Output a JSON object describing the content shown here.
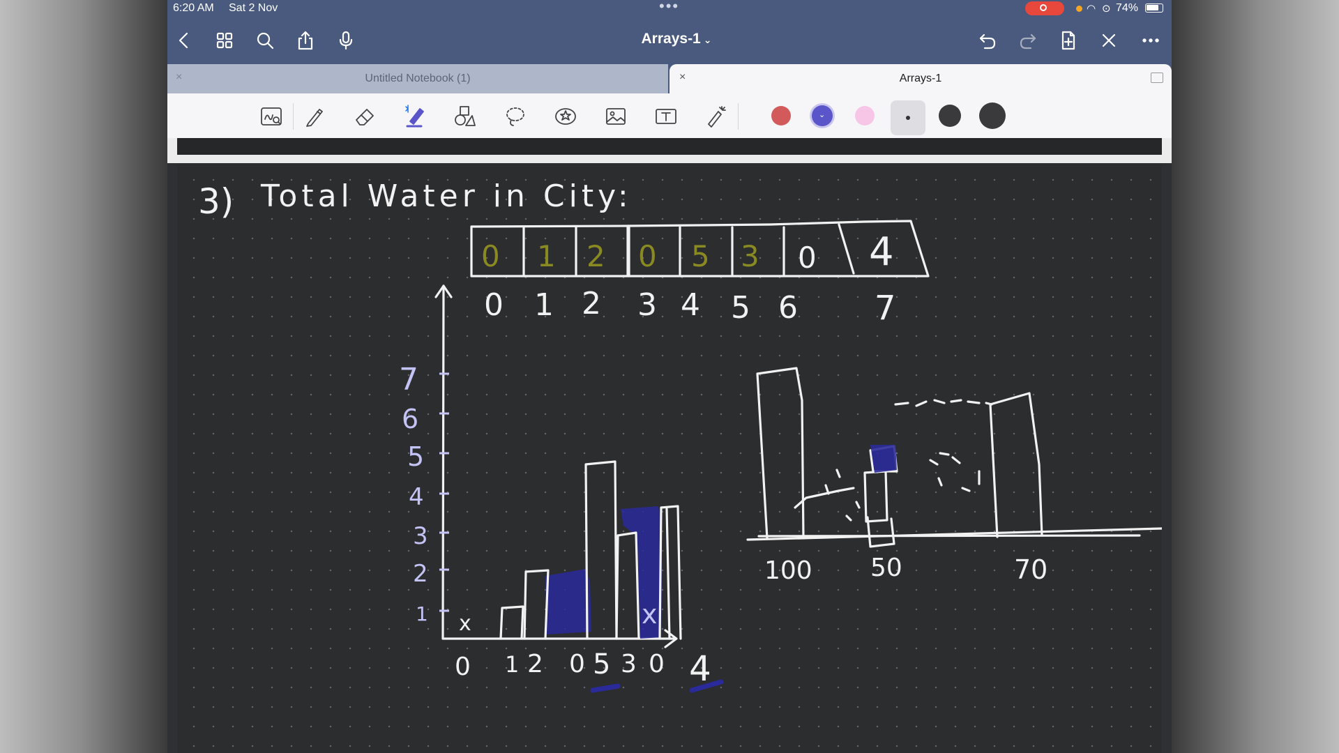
{
  "status_bar": {
    "time": "6:20 AM",
    "date": "Sat 2 Nov",
    "battery": "74%"
  },
  "nav": {
    "title": "Arrays-1"
  },
  "tabs": [
    {
      "label": "Untitled Notebook (1)",
      "active": false
    },
    {
      "label": "Arrays-1",
      "active": true
    }
  ],
  "toolbar": {
    "tools": [
      "zoom-window",
      "pen",
      "eraser",
      "highlighter",
      "shapes",
      "lasso",
      "sticker",
      "image",
      "text",
      "laser-pointer"
    ],
    "colors": [
      "#d35a5a",
      "#5a55c8",
      "#f7c6e6"
    ],
    "selected_color": "#5a55c8"
  },
  "notes": {
    "heading_number": "3)",
    "heading": "Total Water in City:",
    "array_cells": [
      "0",
      "1",
      "2",
      "0",
      "5",
      "3",
      "0",
      "4"
    ],
    "array_indices": [
      "0",
      "1",
      "2",
      "3",
      "4",
      "5",
      "6",
      "7"
    ],
    "y_ticks": [
      "1",
      "2",
      "3",
      "4",
      "5",
      "6",
      "7"
    ],
    "x_values": [
      "0",
      "1",
      "2",
      "0",
      "5",
      "3",
      "0",
      "4"
    ],
    "x_marks": [
      "x",
      "x"
    ],
    "building_labels": [
      "100",
      "50",
      "70"
    ]
  }
}
